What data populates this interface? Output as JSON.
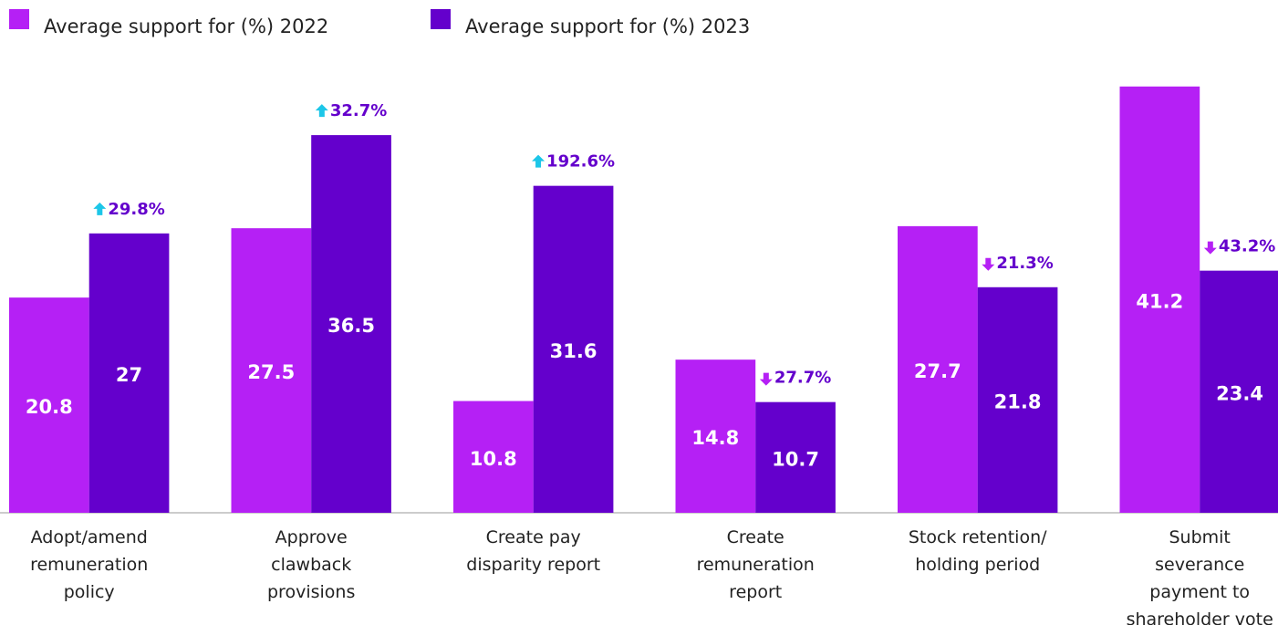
{
  "chart_data": {
    "type": "bar",
    "categories": [
      "Adopt/amend\nremuneration\npolicy",
      "Approve\nclawback\nprovisions",
      "Create pay\ndisparity report",
      "Create\nremuneration\nreport",
      "Stock retention/\nholding period",
      "Submit\nseverance\npayment to\nshareholder vote"
    ],
    "series": [
      {
        "name": "Average support for (%) 2022",
        "color": "#b520f5",
        "values": [
          20.8,
          27.5,
          10.8,
          14.8,
          27.7,
          41.2
        ]
      },
      {
        "name": "Average support for (%) 2023",
        "color": "#6400cc",
        "values": [
          27.0,
          36.5,
          31.6,
          10.7,
          21.8,
          23.4
        ]
      }
    ],
    "change_labels": [
      "29.8%",
      "32.7%",
      "192.6%",
      "27.7%",
      "21.3%",
      "43.2%"
    ],
    "change_directions": [
      "up",
      "up",
      "up",
      "down",
      "down",
      "down"
    ],
    "arrow_colors": {
      "up": "#1cc6e8",
      "down": "#b520f5"
    },
    "change_label_color": "#6400cc",
    "ylim": [
      0,
      45
    ]
  }
}
